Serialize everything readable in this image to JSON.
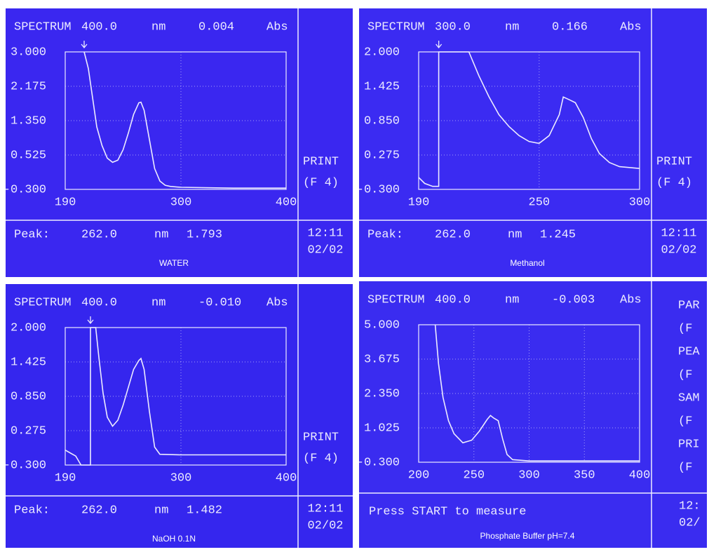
{
  "chart_data": [
    {
      "type": "line",
      "header": {
        "mode": "SPECTRUM",
        "wavelength": "400.0",
        "wavelength_unit": "nm",
        "reading": "0.004",
        "reading_unit": "Abs"
      },
      "xlim": [
        190,
        400
      ],
      "xticks": [
        190,
        300,
        400
      ],
      "ylim": [
        -0.3,
        3.0
      ],
      "yticks": [
        {
          "value": -0.3,
          "label": "-0.300"
        },
        {
          "value": 0.525,
          "label": "0.525"
        },
        {
          "value": 1.35,
          "label": "1.350"
        },
        {
          "value": 2.175,
          "label": "2.175"
        },
        {
          "value": 3.0,
          "label": "3.000"
        }
      ],
      "grid": true,
      "x": [
        208,
        212,
        216,
        220,
        225,
        230,
        235,
        240,
        245,
        250,
        255,
        260,
        262,
        265,
        270,
        275,
        280,
        285,
        290,
        300,
        350,
        400
      ],
      "series": [
        {
          "color": "#ecebff",
          "values": [
            3.0,
            2.6,
            1.9,
            1.2,
            0.75,
            0.45,
            0.35,
            0.4,
            0.65,
            1.05,
            1.5,
            1.78,
            1.793,
            1.6,
            0.9,
            0.2,
            -0.1,
            -0.2,
            -0.23,
            -0.25,
            -0.27,
            -0.27
          ]
        }
      ],
      "peak": {
        "label": "Peak:",
        "wavelength": "262.0",
        "wavelength_unit": "nm",
        "value": "1.793"
      },
      "side": [
        "PRINT",
        "(F 4)"
      ],
      "time": "12:11",
      "date": "02/02",
      "caption": "WATER"
    },
    {
      "type": "line",
      "header": {
        "mode": "SPECTRUM",
        "wavelength": "300.0",
        "wavelength_unit": "nm",
        "reading": "0.166",
        "reading_unit": "Abs"
      },
      "xlim": [
        190,
        300
      ],
      "xticks": [
        190,
        250,
        300
      ],
      "ylim": [
        -0.3,
        2.0
      ],
      "yticks": [
        {
          "value": -0.3,
          "label": "-0.300"
        },
        {
          "value": 0.275,
          "label": "0.275"
        },
        {
          "value": 0.85,
          "label": "0.850"
        },
        {
          "value": 1.425,
          "label": "1.425"
        },
        {
          "value": 2.0,
          "label": "2.000"
        }
      ],
      "grid": true,
      "x": [
        190,
        193,
        197,
        200,
        200,
        215,
        220,
        225,
        230,
        235,
        240,
        245,
        250,
        255,
        260,
        262,
        265,
        268,
        272,
        276,
        280,
        285,
        290,
        300
      ],
      "series": [
        {
          "color": "#ecebff",
          "values": [
            -0.1,
            -0.2,
            -0.25,
            -0.25,
            2.0,
            2.0,
            1.6,
            1.25,
            0.95,
            0.75,
            0.6,
            0.5,
            0.47,
            0.6,
            0.95,
            1.245,
            1.2,
            1.15,
            0.9,
            0.55,
            0.3,
            0.15,
            0.08,
            0.05
          ]
        }
      ],
      "peak": {
        "label": "Peak:",
        "wavelength": "262.0",
        "wavelength_unit": "nm",
        "value": "1.245"
      },
      "side": [
        "PRINT",
        "(F 4)"
      ],
      "time": "12:11",
      "date": "02/02",
      "caption": "Methanol"
    },
    {
      "type": "line",
      "header": {
        "mode": "SPECTRUM",
        "wavelength": "400.0",
        "wavelength_unit": "nm",
        "reading": "-0.010",
        "reading_unit": "Abs"
      },
      "xlim": [
        190,
        400
      ],
      "xticks": [
        190,
        300,
        400
      ],
      "ylim": [
        -0.3,
        2.0
      ],
      "yticks": [
        {
          "value": -0.3,
          "label": "-0.300"
        },
        {
          "value": 0.275,
          "label": "0.275"
        },
        {
          "value": 0.85,
          "label": "0.850"
        },
        {
          "value": 1.425,
          "label": "1.425"
        },
        {
          "value": 2.0,
          "label": "2.000"
        }
      ],
      "grid": true,
      "x": [
        190,
        195,
        200,
        205,
        214,
        214,
        219,
        222,
        226,
        230,
        235,
        240,
        245,
        250,
        255,
        260,
        262,
        265,
        270,
        275,
        280,
        300,
        400
      ],
      "series": [
        {
          "color": "#ecebff",
          "values": [
            -0.05,
            -0.1,
            -0.15,
            -0.3,
            -0.3,
            2.0,
            2.0,
            1.5,
            0.9,
            0.5,
            0.35,
            0.45,
            0.7,
            1.0,
            1.3,
            1.45,
            1.482,
            1.3,
            0.6,
            0.0,
            -0.12,
            -0.13,
            -0.13
          ]
        }
      ],
      "peak": {
        "label": "Peak:",
        "wavelength": "262.0",
        "wavelength_unit": "nm",
        "value": "1.482"
      },
      "side": [
        "PRINT",
        "(F 4)"
      ],
      "time": "12:11",
      "date": "02/02",
      "caption": "NaOH 0.1N"
    },
    {
      "type": "line",
      "header": {
        "mode": "SPECTRUM",
        "wavelength": "400.0",
        "wavelength_unit": "nm",
        "reading": "-0.003",
        "reading_unit": "Abs"
      },
      "xlim": [
        200,
        400
      ],
      "xticks": [
        200,
        250,
        300,
        350,
        400
      ],
      "ylim": [
        -0.3,
        5.0
      ],
      "yticks": [
        {
          "value": -0.3,
          "label": "-0.300"
        },
        {
          "value": 1.025,
          "label": "1.025"
        },
        {
          "value": 2.35,
          "label": "2.350"
        },
        {
          "value": 3.675,
          "label": "3.675"
        },
        {
          "value": 5.0,
          "label": "5.000"
        }
      ],
      "grid": true,
      "x": [
        215,
        218,
        222,
        227,
        232,
        240,
        248,
        255,
        262,
        265,
        268,
        272,
        276,
        280,
        285,
        300,
        400
      ],
      "series": [
        {
          "color": "#ecebff",
          "values": [
            5.0,
            3.5,
            2.2,
            1.3,
            0.8,
            0.45,
            0.55,
            0.9,
            1.35,
            1.5,
            1.4,
            1.3,
            0.6,
            0.0,
            -0.2,
            -0.25,
            -0.25
          ]
        }
      ],
      "message": "Press START to measure",
      "side": [
        "PAR",
        "(F",
        "PEA",
        "(F",
        "SAM",
        "(F",
        "PRI",
        "(F"
      ],
      "time": "12:",
      "date": "02/",
      "caption": "Phosphate Buffer pH=7.4"
    }
  ]
}
